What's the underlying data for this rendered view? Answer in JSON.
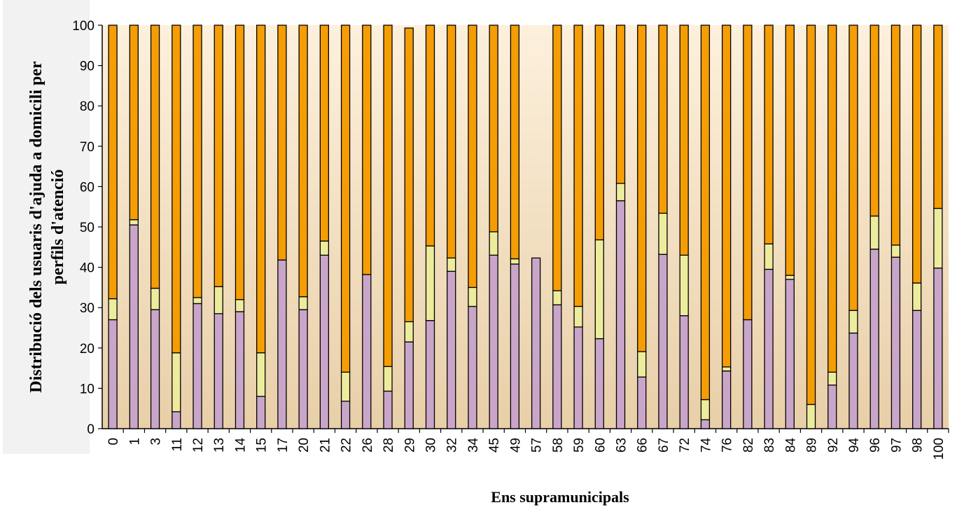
{
  "chart_data": {
    "type": "bar",
    "stacked": true,
    "ylabel": "Distribució dels usuaris d'ajuda a domicili per\nperfils d'atenció",
    "xlabel": "Ens supramunicipals",
    "ylim": [
      0,
      100
    ],
    "yticks": [
      0,
      10,
      20,
      30,
      40,
      50,
      60,
      70,
      80,
      90,
      100
    ],
    "grid": false,
    "legend": "none",
    "background": "vertical gradient from light peach (#fdf0dc) at top to tan (#e8cfa8) at bottom",
    "categories": [
      "0",
      "1",
      "3",
      "11",
      "12",
      "13",
      "14",
      "15",
      "17",
      "20",
      "21",
      "22",
      "26",
      "28",
      "29",
      "30",
      "32",
      "34",
      "45",
      "49",
      "57",
      "58",
      "59",
      "60",
      "63",
      "66",
      "67",
      "72",
      "74",
      "76",
      "82",
      "83",
      "84",
      "89",
      "92",
      "94",
      "96",
      "97",
      "98",
      "100"
    ],
    "series": [
      {
        "color": "#c9a6c9",
        "values": [
          27,
          50.5,
          29.5,
          4.2,
          31,
          28.5,
          29,
          8,
          41.8,
          29.5,
          43,
          6.8,
          38.2,
          9.3,
          21.5,
          26.8,
          39,
          30.3,
          43,
          40.8,
          42.3,
          30.7,
          25.2,
          22.3,
          56.5,
          12.8,
          43.2,
          28,
          2.2,
          14.3,
          27,
          39.5,
          37,
          0,
          10.8,
          23.7,
          44.5,
          42.5,
          29.3,
          39.8
        ]
      },
      {
        "color": "#ecec9c",
        "values": [
          5.2,
          1.3,
          5.3,
          14.6,
          1.5,
          6.7,
          3,
          10.8,
          0,
          3.2,
          3.5,
          7.2,
          0,
          6.1,
          5,
          18.5,
          3.3,
          4.7,
          5.8,
          1.3,
          0,
          3.5,
          5.1,
          24.5,
          4.3,
          6.3,
          10.2,
          15,
          5,
          1,
          0,
          6.3,
          1,
          6,
          3.2,
          5.6,
          8.2,
          3,
          6.8,
          14.8
        ]
      },
      {
        "color": "#f59d05",
        "values": [
          67.8,
          48.2,
          65.2,
          81.2,
          67.5,
          64.8,
          68,
          81.2,
          58.2,
          67.3,
          53.5,
          86,
          61.8,
          84.6,
          72.8,
          54.7,
          57.7,
          65,
          51.2,
          57.9,
          0,
          65.8,
          69.7,
          53.2,
          39.2,
          80.9,
          46.6,
          57,
          92.8,
          84.7,
          73,
          54.2,
          62,
          94,
          86,
          70.7,
          47.3,
          54.5,
          63.9,
          45.4
        ]
      }
    ],
    "totals_note": "29 sums to 99.3"
  }
}
